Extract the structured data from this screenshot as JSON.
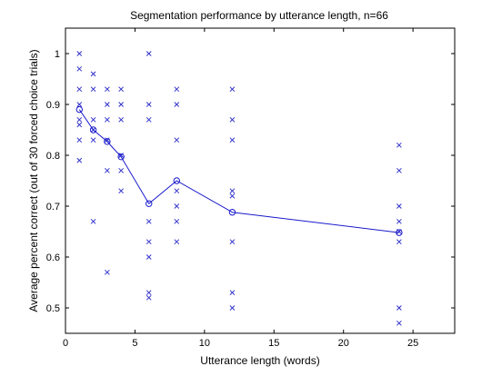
{
  "chart_data": {
    "type": "scatter",
    "title": "Segmentation performance by utterance length, n=66",
    "xlabel": "Utterance length (words)",
    "ylabel": "Average percent correct (out of 30 forced choice trials)",
    "xlim": [
      0,
      28
    ],
    "ylim": [
      0.45,
      1.05
    ],
    "xticks": [
      0,
      5,
      10,
      15,
      20,
      25
    ],
    "yticks": [
      0.5,
      0.6,
      0.7,
      0.8,
      0.9,
      1
    ],
    "ytick_labels": [
      "0.5",
      "0.6",
      "0.7",
      "0.8",
      "0.9",
      "1"
    ],
    "grid": false,
    "colors": {
      "markers": "#3333cc",
      "line": "#1a1acc"
    },
    "series": [
      {
        "marker": "x",
        "points": [
          [
            1,
            1.0
          ],
          [
            1,
            0.97
          ],
          [
            1,
            0.93
          ],
          [
            1,
            0.9
          ],
          [
            1,
            0.87
          ],
          [
            1,
            0.86
          ],
          [
            1,
            0.83
          ],
          [
            1,
            0.79
          ],
          [
            2,
            0.96
          ],
          [
            2,
            0.93
          ],
          [
            2,
            0.87
          ],
          [
            2,
            0.85
          ],
          [
            2,
            0.83
          ],
          [
            2,
            0.67
          ],
          [
            3,
            0.93
          ],
          [
            3,
            0.9
          ],
          [
            3,
            0.87
          ],
          [
            3,
            0.83
          ],
          [
            3,
            0.77
          ],
          [
            3,
            0.57
          ],
          [
            4,
            0.93
          ],
          [
            4,
            0.9
          ],
          [
            4,
            0.87
          ],
          [
            4,
            0.8
          ],
          [
            4,
            0.77
          ],
          [
            4,
            0.73
          ],
          [
            6,
            1.0
          ],
          [
            6,
            0.9
          ],
          [
            6,
            0.87
          ],
          [
            6,
            0.67
          ],
          [
            6,
            0.63
          ],
          [
            6,
            0.6
          ],
          [
            6,
            0.53
          ],
          [
            6,
            0.52
          ],
          [
            8,
            0.93
          ],
          [
            8,
            0.9
          ],
          [
            8,
            0.83
          ],
          [
            8,
            0.73
          ],
          [
            8,
            0.7
          ],
          [
            8,
            0.67
          ],
          [
            8,
            0.63
          ],
          [
            12,
            0.93
          ],
          [
            12,
            0.87
          ],
          [
            12,
            0.83
          ],
          [
            12,
            0.73
          ],
          [
            12,
            0.72
          ],
          [
            12,
            0.63
          ],
          [
            12,
            0.53
          ],
          [
            12,
            0.5
          ],
          [
            24,
            0.82
          ],
          [
            24,
            0.77
          ],
          [
            24,
            0.7
          ],
          [
            24,
            0.67
          ],
          [
            24,
            0.65
          ],
          [
            24,
            0.63
          ],
          [
            24,
            0.5
          ],
          [
            24,
            0.47
          ]
        ]
      },
      {
        "marker": "o-line",
        "x": [
          1,
          2,
          3,
          4,
          6,
          8,
          12,
          24
        ],
        "y": [
          0.89,
          0.85,
          0.827,
          0.797,
          0.705,
          0.75,
          0.688,
          0.648
        ]
      }
    ]
  }
}
